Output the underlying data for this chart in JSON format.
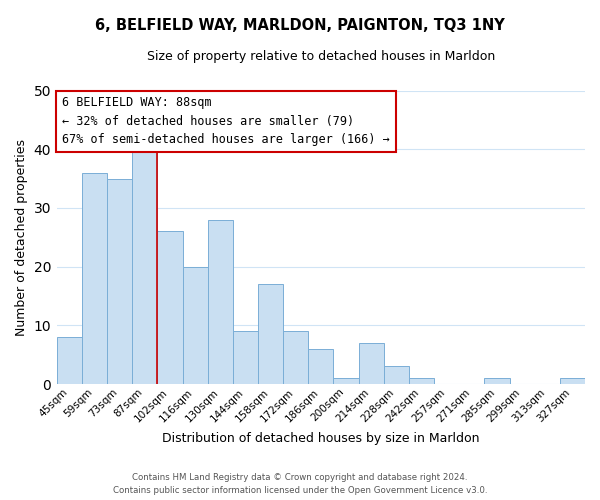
{
  "title": "6, BELFIELD WAY, MARLDON, PAIGNTON, TQ3 1NY",
  "subtitle": "Size of property relative to detached houses in Marldon",
  "xlabel": "Distribution of detached houses by size in Marldon",
  "ylabel": "Number of detached properties",
  "bar_color": "#c9dff2",
  "bar_edge_color": "#7aaed6",
  "background_color": "#ffffff",
  "grid_color": "#d0e4f5",
  "annotation_box_edge": "#cc0000",
  "property_line_color": "#cc0000",
  "categories": [
    "45sqm",
    "59sqm",
    "73sqm",
    "87sqm",
    "102sqm",
    "116sqm",
    "130sqm",
    "144sqm",
    "158sqm",
    "172sqm",
    "186sqm",
    "200sqm",
    "214sqm",
    "228sqm",
    "242sqm",
    "257sqm",
    "271sqm",
    "285sqm",
    "299sqm",
    "313sqm",
    "327sqm"
  ],
  "values": [
    8,
    36,
    35,
    40,
    26,
    20,
    28,
    9,
    17,
    9,
    6,
    1,
    7,
    3,
    1,
    0,
    0,
    1,
    0,
    0,
    1
  ],
  "property_bar_index": 3,
  "annotation_title": "6 BELFIELD WAY: 88sqm",
  "annotation_line1": "← 32% of detached houses are smaller (79)",
  "annotation_line2": "67% of semi-detached houses are larger (166) →",
  "footer_line1": "Contains HM Land Registry data © Crown copyright and database right 2024.",
  "footer_line2": "Contains public sector information licensed under the Open Government Licence v3.0.",
  "ylim": [
    0,
    50
  ],
  "yticks": [
    0,
    10,
    20,
    30,
    40,
    50
  ]
}
